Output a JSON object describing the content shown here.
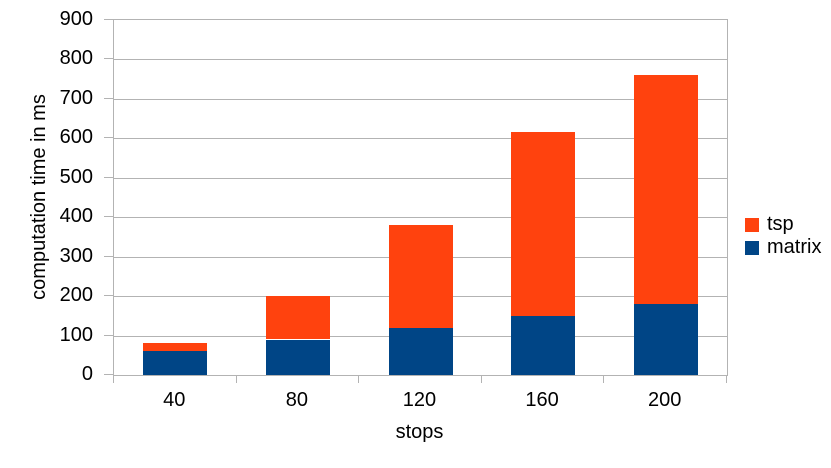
{
  "chart_data": {
    "type": "bar",
    "stacked": true,
    "title": "",
    "xlabel": "stops",
    "ylabel": "computation time in ms",
    "categories": [
      "40",
      "80",
      "120",
      "160",
      "200"
    ],
    "series": [
      {
        "name": "matrix",
        "color": "#004586",
        "values": [
          60,
          90,
          120,
          150,
          180
        ]
      },
      {
        "name": "tsp",
        "color": "#ff420e",
        "values": [
          20,
          110,
          260,
          465,
          580
        ]
      }
    ],
    "totals": [
      80,
      200,
      380,
      615,
      760
    ],
    "ylim": [
      0,
      900
    ],
    "ytick_step": 100,
    "grid": true,
    "legend_position": "right",
    "legend": [
      {
        "label": "tsp",
        "color": "#ff420e"
      },
      {
        "label": "matrix",
        "color": "#004586"
      }
    ],
    "colors": {
      "grid": "#b3b3b3",
      "axis": "#b3b3b3",
      "text": "#000000",
      "background": "#ffffff"
    }
  }
}
